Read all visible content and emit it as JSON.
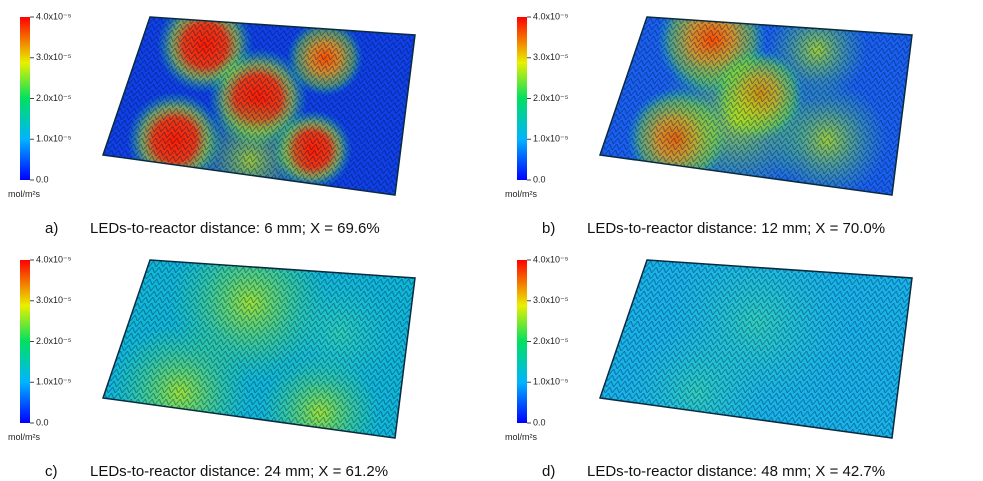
{
  "panels": [
    {
      "label": "a)",
      "caption": "LEDs-to-reactor distance: 6 mm; X = 69.6%",
      "colorbar": {
        "range": [
          0,
          4e-05
        ],
        "unit": "mol/m²s",
        "ticks": [
          {
            "value": 0,
            "label": "0.0"
          },
          {
            "value": 1e-05,
            "label": "1.0x10⁻⁵"
          },
          {
            "value": 2e-05,
            "label": "2.0x10⁻⁵"
          },
          {
            "value": 3e-05,
            "label": "3.0x10⁻⁵"
          },
          {
            "value": 4e-05,
            "label": "4.0x10⁻⁵"
          }
        ]
      }
    },
    {
      "label": "b)",
      "caption": "LEDs-to-reactor distance: 12 mm; X = 70.0%",
      "colorbar": {
        "range": [
          0,
          4e-05
        ],
        "unit": "mol/m²s",
        "ticks": [
          {
            "value": 0,
            "label": "0.0"
          },
          {
            "value": 1e-05,
            "label": "1.0x10⁻⁵"
          },
          {
            "value": 2e-05,
            "label": "2.0x10⁻⁵"
          },
          {
            "value": 3e-05,
            "label": "3.0x10⁻⁵"
          },
          {
            "value": 4e-05,
            "label": "4.0x10⁻⁵"
          }
        ]
      }
    },
    {
      "label": "c)",
      "caption": "LEDs-to-reactor distance: 24 mm; X = 61.2%",
      "colorbar": {
        "range": [
          0,
          4e-05
        ],
        "unit": "mol/m²s",
        "ticks": [
          {
            "value": 0,
            "label": "0.0"
          },
          {
            "value": 1e-05,
            "label": "1.0x10⁻⁵"
          },
          {
            "value": 2e-05,
            "label": "2.0x10⁻⁵"
          },
          {
            "value": 3e-05,
            "label": "3.0x10⁻⁵"
          },
          {
            "value": 4e-05,
            "label": "4.0x10⁻⁵"
          }
        ]
      }
    },
    {
      "label": "d)",
      "caption": "LEDs-to-reactor distance: 48 mm; X = 42.7%",
      "colorbar": {
        "range": [
          0,
          4e-05
        ],
        "unit": "mol/m²s",
        "ticks": [
          {
            "value": 0,
            "label": "0.0"
          },
          {
            "value": 1e-05,
            "label": "1.0x10⁻⁵"
          },
          {
            "value": 2e-05,
            "label": "2.0x10⁻⁵"
          },
          {
            "value": 3e-05,
            "label": "3.0x10⁻⁵"
          },
          {
            "value": 4e-05,
            "label": "4.0x10⁻⁵"
          }
        ]
      }
    }
  ]
}
